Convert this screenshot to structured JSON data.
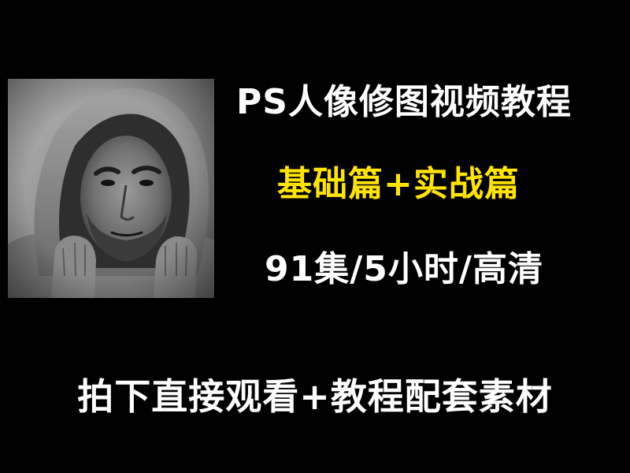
{
  "colors": {
    "background": "#000000",
    "title": "#ffffff",
    "subtitle": "#ffe400",
    "specs": "#ffffff",
    "cta": "#ffffff"
  },
  "banner": {
    "title": "PS人像修图视频教程",
    "subtitle": "基础篇+实战篇",
    "specs": "91集/5小时/高清",
    "cta": "拍下直接观看+教程配套素材"
  }
}
